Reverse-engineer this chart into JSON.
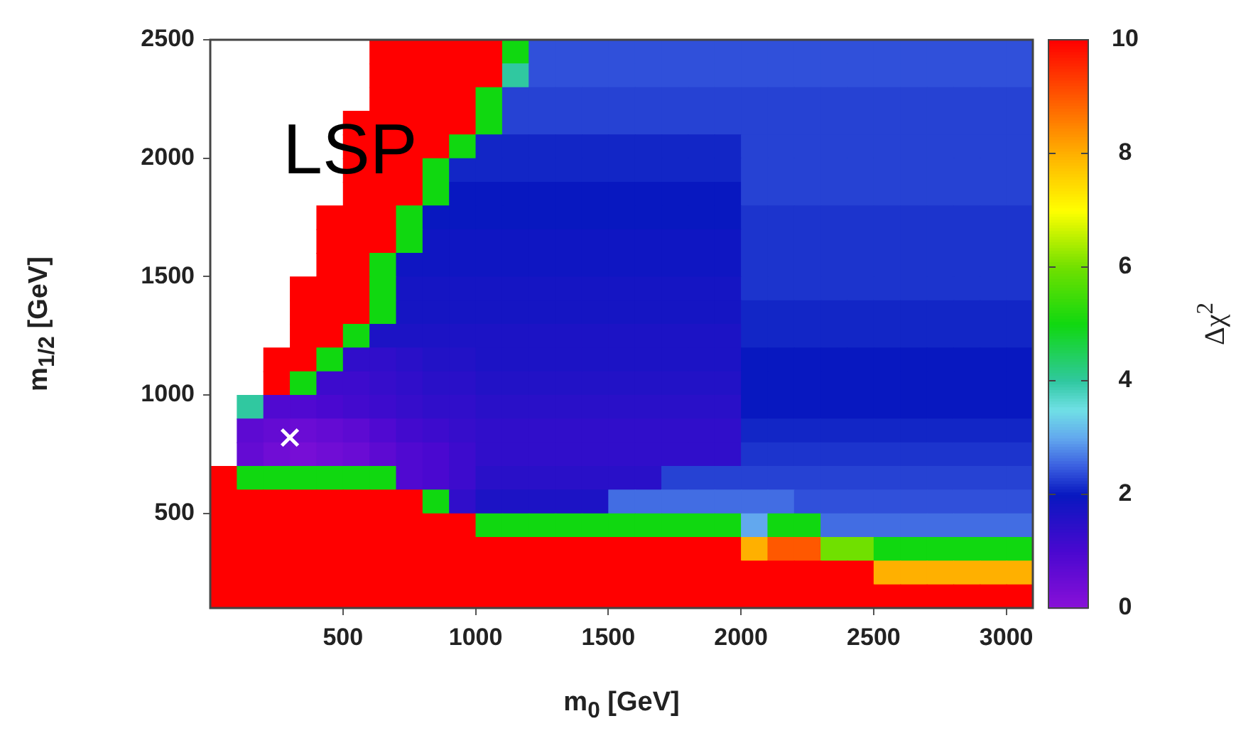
{
  "chart_data": {
    "type": "heatmap",
    "xlabel": "m$_{0}$ [GeV]",
    "ylabel": "m$_{1/2}$ [GeV]",
    "clabel": "Δχ$^{2}$",
    "x": [
      50,
      150,
      250,
      350,
      450,
      550,
      650,
      750,
      850,
      950,
      1050,
      1150,
      1250,
      1350,
      1450,
      1550,
      1650,
      1750,
      1850,
      1950,
      2050,
      2150,
      2250,
      2350,
      2450,
      2550,
      2650,
      2750,
      2850,
      2950,
      3050
    ],
    "y": [
      2450,
      2350,
      2250,
      2150,
      2050,
      1950,
      1850,
      1750,
      1650,
      1550,
      1450,
      1350,
      1250,
      1150,
      1050,
      950,
      850,
      750,
      650,
      550,
      450,
      350,
      250,
      150
    ],
    "cells": [
      [
        null,
        null,
        null,
        null,
        null,
        null,
        10,
        10,
        10,
        10,
        10,
        5,
        2.4,
        2.4,
        2.4,
        2.4,
        2.4,
        2.4,
        2.4,
        2.4,
        2.4,
        2.4,
        2.4,
        2.4,
        2.4,
        2.4,
        2.4,
        2.4,
        2.4,
        2.4,
        2.4
      ],
      [
        null,
        null,
        null,
        null,
        null,
        null,
        10,
        10,
        10,
        10,
        10,
        4,
        2.4,
        2.4,
        2.4,
        2.4,
        2.4,
        2.4,
        2.4,
        2.4,
        2.4,
        2.4,
        2.4,
        2.4,
        2.4,
        2.4,
        2.4,
        2.4,
        2.4,
        2.4,
        2.4
      ],
      [
        null,
        null,
        null,
        null,
        null,
        null,
        10,
        10,
        10,
        10,
        5,
        2.3,
        2.3,
        2.3,
        2.3,
        2.3,
        2.3,
        2.3,
        2.3,
        2.3,
        2.3,
        2.3,
        2.3,
        2.3,
        2.3,
        2.3,
        2.3,
        2.3,
        2.3,
        2.3,
        2.3
      ],
      [
        null,
        null,
        null,
        null,
        null,
        10,
        10,
        10,
        10,
        10,
        5,
        2.3,
        2.3,
        2.3,
        2.3,
        2.3,
        2.3,
        2.3,
        2.3,
        2.3,
        2.3,
        2.3,
        2.3,
        2.3,
        2.3,
        2.3,
        2.3,
        2.3,
        2.3,
        2.3,
        2.3
      ],
      [
        null,
        null,
        null,
        null,
        null,
        10,
        10,
        10,
        10,
        5,
        2.1,
        2.1,
        2.1,
        2.1,
        2.1,
        2.1,
        2.1,
        2.1,
        2.1,
        2.1,
        2.3,
        2.3,
        2.3,
        2.3,
        2.3,
        2.3,
        2.3,
        2.3,
        2.3,
        2.3,
        2.3
      ],
      [
        null,
        null,
        null,
        null,
        null,
        10,
        10,
        10,
        5,
        2.1,
        2.1,
        2.1,
        2.1,
        2.1,
        2.1,
        2.1,
        2.1,
        2.1,
        2.1,
        2.1,
        2.3,
        2.3,
        2.3,
        2.3,
        2.3,
        2.3,
        2.3,
        2.3,
        2.3,
        2.3,
        2.3
      ],
      [
        null,
        null,
        null,
        null,
        null,
        10,
        10,
        10,
        5,
        2,
        2,
        2,
        2,
        2,
        2,
        2,
        2,
        2,
        2,
        2,
        2.3,
        2.3,
        2.3,
        2.3,
        2.3,
        2.3,
        2.3,
        2.3,
        2.3,
        2.3,
        2.3
      ],
      [
        null,
        null,
        null,
        null,
        10,
        10,
        10,
        5,
        2,
        2,
        2,
        2,
        2,
        2,
        2,
        2,
        2,
        2,
        2,
        2,
        2.2,
        2.2,
        2.2,
        2.2,
        2.2,
        2.2,
        2.2,
        2.2,
        2.2,
        2.2,
        2.2
      ],
      [
        null,
        null,
        null,
        null,
        10,
        10,
        10,
        5,
        1.9,
        1.9,
        1.9,
        1.9,
        1.9,
        1.9,
        1.9,
        1.9,
        1.9,
        1.9,
        1.9,
        1.9,
        2.2,
        2.2,
        2.2,
        2.2,
        2.2,
        2.2,
        2.2,
        2.2,
        2.2,
        2.2,
        2.2
      ],
      [
        null,
        null,
        null,
        null,
        10,
        10,
        5,
        1.9,
        1.9,
        1.9,
        1.9,
        1.9,
        1.9,
        1.9,
        1.9,
        1.9,
        1.9,
        1.9,
        1.9,
        1.9,
        2.2,
        2.2,
        2.2,
        2.2,
        2.2,
        2.2,
        2.2,
        2.2,
        2.2,
        2.2,
        2.2
      ],
      [
        null,
        null,
        null,
        10,
        10,
        10,
        5,
        1.8,
        1.8,
        1.8,
        1.8,
        1.8,
        1.8,
        1.8,
        1.8,
        1.8,
        1.8,
        1.8,
        1.8,
        1.8,
        2.2,
        2.2,
        2.2,
        2.2,
        2.2,
        2.2,
        2.2,
        2.2,
        2.2,
        2.2,
        2.2
      ],
      [
        null,
        null,
        null,
        10,
        10,
        10,
        5,
        1.8,
        1.8,
        1.8,
        1.8,
        1.8,
        1.8,
        1.8,
        1.8,
        1.8,
        1.8,
        1.8,
        1.8,
        1.8,
        2.1,
        2.1,
        2.1,
        2.1,
        2.1,
        2.1,
        2.1,
        2.1,
        2.1,
        2.1,
        2.1
      ],
      [
        null,
        null,
        null,
        10,
        10,
        5,
        1.7,
        1.7,
        1.7,
        1.7,
        1.7,
        1.7,
        1.7,
        1.7,
        1.7,
        1.7,
        1.7,
        1.7,
        1.7,
        1.7,
        2.1,
        2.1,
        2.1,
        2.1,
        2.1,
        2.1,
        2.1,
        2.1,
        2.1,
        2.1,
        2.1
      ],
      [
        null,
        null,
        10,
        10,
        5,
        1.4,
        1.4,
        1.5,
        1.6,
        1.6,
        1.7,
        1.7,
        1.7,
        1.7,
        1.7,
        1.7,
        1.7,
        1.7,
        1.7,
        1.7,
        2,
        2,
        2,
        2,
        2,
        2,
        2,
        2,
        2,
        2,
        2
      ],
      [
        null,
        null,
        10,
        5,
        1.2,
        1.2,
        1.3,
        1.4,
        1.5,
        1.5,
        1.6,
        1.6,
        1.6,
        1.6,
        1.6,
        1.6,
        1.6,
        1.6,
        1.6,
        1.6,
        2,
        2,
        2,
        2,
        2,
        2,
        2,
        2,
        2,
        2,
        2
      ],
      [
        null,
        4,
        0.9,
        0.9,
        1,
        1.1,
        1.2,
        1.3,
        1.4,
        1.4,
        1.5,
        1.5,
        1.5,
        1.5,
        1.5,
        1.5,
        1.5,
        1.5,
        1.5,
        1.5,
        2,
        2,
        2,
        2,
        2,
        2,
        2,
        2,
        2,
        2,
        2
      ],
      [
        null,
        0.7,
        0.6,
        0.5,
        0.6,
        0.7,
        0.9,
        1.1,
        1.2,
        1.3,
        1.4,
        1.4,
        1.4,
        1.4,
        1.4,
        1.4,
        1.4,
        1.4,
        1.4,
        1.4,
        2.1,
        2.1,
        2.1,
        2.1,
        2.1,
        2.1,
        2.1,
        2.1,
        2.1,
        2.1,
        2.1
      ],
      [
        null,
        0.6,
        0.4,
        0.3,
        0.4,
        0.5,
        0.7,
        0.9,
        1,
        1.2,
        1.4,
        1.4,
        1.4,
        1.4,
        1.4,
        1.4,
        1.4,
        1.4,
        1.4,
        1.4,
        2.2,
        2.2,
        2.2,
        2.2,
        2.2,
        2.2,
        2.2,
        2.2,
        2.2,
        2.2,
        2.2
      ],
      [
        10,
        5,
        5,
        5,
        5,
        5,
        5,
        0.9,
        1,
        1.2,
        1.5,
        1.5,
        1.5,
        1.5,
        1.5,
        1.5,
        1.5,
        2.3,
        2.3,
        2.3,
        2.3,
        2.3,
        2.3,
        2.3,
        2.3,
        2.3,
        2.3,
        2.3,
        2.3,
        2.3,
        2.3
      ],
      [
        10,
        10,
        10,
        10,
        10,
        10,
        10,
        10,
        5,
        1.4,
        1.7,
        1.7,
        1.7,
        1.7,
        1.7,
        2.6,
        2.6,
        2.6,
        2.6,
        2.6,
        2.6,
        2.6,
        2.4,
        2.4,
        2.4,
        2.4,
        2.4,
        2.4,
        2.4,
        2.4,
        2.4
      ],
      [
        10,
        10,
        10,
        10,
        10,
        10,
        10,
        10,
        10,
        10,
        5,
        5,
        5,
        5,
        5,
        5,
        5,
        5,
        5,
        5,
        3,
        5,
        5,
        2.6,
        2.6,
        2.6,
        2.6,
        2.6,
        2.6,
        2.6,
        2.6
      ],
      [
        10,
        10,
        10,
        10,
        10,
        10,
        10,
        10,
        10,
        10,
        10,
        10,
        10,
        10,
        10,
        10,
        10,
        10,
        10,
        10,
        8,
        9,
        9,
        6,
        6,
        5,
        5,
        5,
        5,
        5,
        5
      ],
      [
        10,
        10,
        10,
        10,
        10,
        10,
        10,
        10,
        10,
        10,
        10,
        10,
        10,
        10,
        10,
        10,
        10,
        10,
        10,
        10,
        10,
        10,
        10,
        10,
        10,
        8,
        8,
        8,
        8,
        8,
        8
      ],
      [
        10,
        10,
        10,
        10,
        10,
        10,
        10,
        10,
        10,
        10,
        10,
        10,
        10,
        10,
        10,
        10,
        10,
        10,
        10,
        10,
        10,
        10,
        10,
        10,
        10,
        10,
        10,
        10,
        10,
        10,
        10
      ]
    ],
    "clim": [
      0,
      10
    ],
    "cticks": [
      0,
      2,
      4,
      6,
      8,
      10
    ],
    "xlim": [
      0,
      3100
    ],
    "xticks": [
      500,
      1000,
      1500,
      2000,
      2500,
      3000
    ],
    "ylim": [
      100,
      2500
    ],
    "yticks": [
      500,
      1000,
      1500,
      2000,
      2500
    ],
    "grid": false,
    "marker": "cross",
    "series": [
      {
        "type": "scatter",
        "color": "#ffffff",
        "x": [
          300
        ],
        "values": [
          820
        ]
      }
    ],
    "annotations": [
      "LSP"
    ]
  }
}
